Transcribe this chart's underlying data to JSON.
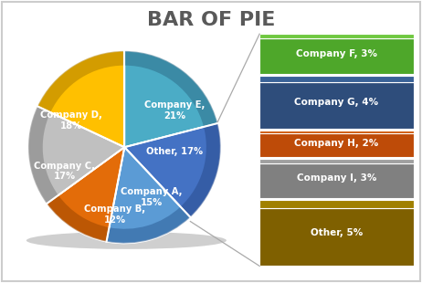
{
  "title": "BAR OF PIE",
  "title_fontsize": 16,
  "title_color": "#595959",
  "pie_labels": [
    "Company E,\n21%",
    "Other, 17%",
    "Company A,\n15%",
    "Company B,\n12%",
    "Company C,\n17%",
    "Company D,\n18%"
  ],
  "pie_values": [
    21,
    17,
    15,
    12,
    17,
    18
  ],
  "pie_colors": [
    "#4BACC6",
    "#4472C4",
    "#5B9BD5",
    "#E36C09",
    "#C0C0C0",
    "#FFC000"
  ],
  "pie_dark_colors": [
    "#2E6E8A",
    "#2A4D8F",
    "#2F6098",
    "#9C4700",
    "#808080",
    "#B08000"
  ],
  "bar_labels": [
    "Company F, 3%",
    "Company G, 4%",
    "Company H, 2%",
    "Company I, 3%",
    "Other, 5%"
  ],
  "bar_values": [
    3,
    4,
    2,
    3,
    5
  ],
  "bar_colors": [
    "#4EA72A",
    "#2E4D7B",
    "#BE4B08",
    "#808080",
    "#7F6000"
  ],
  "bar_top_colors": [
    "#70C840",
    "#3A6298",
    "#D05A0A",
    "#A0A0A0",
    "#A08000"
  ],
  "bg_color": "#FFFFFF",
  "text_color": "#FFFFFF",
  "connector_color": "#AAAAAA",
  "border_color": "#CCCCCC"
}
